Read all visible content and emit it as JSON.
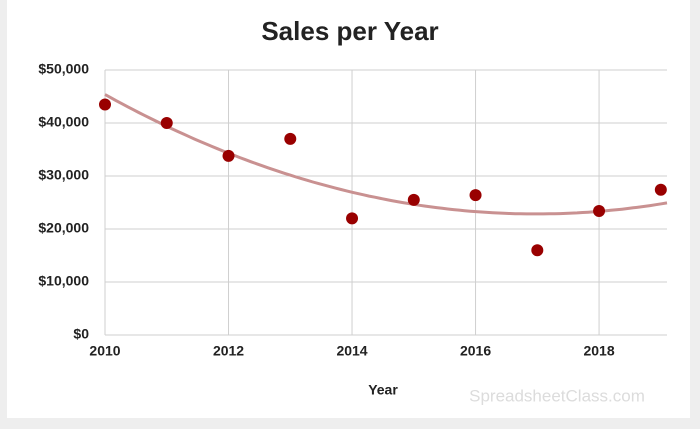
{
  "chart_data": {
    "type": "scatter",
    "title": "Sales per Year",
    "x_label": "Year",
    "watermark": "SpreadsheetClass.com",
    "x": [
      2010,
      2011,
      2012,
      2013,
      2014,
      2015,
      2016,
      2017,
      2018,
      2019
    ],
    "series": [
      {
        "color": "#990000",
        "values": [
          43500,
          40000,
          33800,
          37000,
          22000,
          25500,
          26400,
          16000,
          23400,
          27400
        ]
      }
    ],
    "trendline": {
      "type": "polynomial",
      "degree": 2,
      "color": "#c99191"
    },
    "xlim": [
      2010,
      2019.1
    ],
    "xticks": [
      2010,
      2012,
      2014,
      2016,
      2018
    ],
    "ylim": [
      0,
      50000
    ],
    "yticks": [
      {
        "value": 0,
        "label": "$0"
      },
      {
        "value": 10000,
        "label": "$10,000"
      },
      {
        "value": 20000,
        "label": "$20,000"
      },
      {
        "value": 30000,
        "label": "$30,000"
      },
      {
        "value": 40000,
        "label": "$40,000"
      },
      {
        "value": 50000,
        "label": "$50,000"
      }
    ],
    "grid": true
  }
}
